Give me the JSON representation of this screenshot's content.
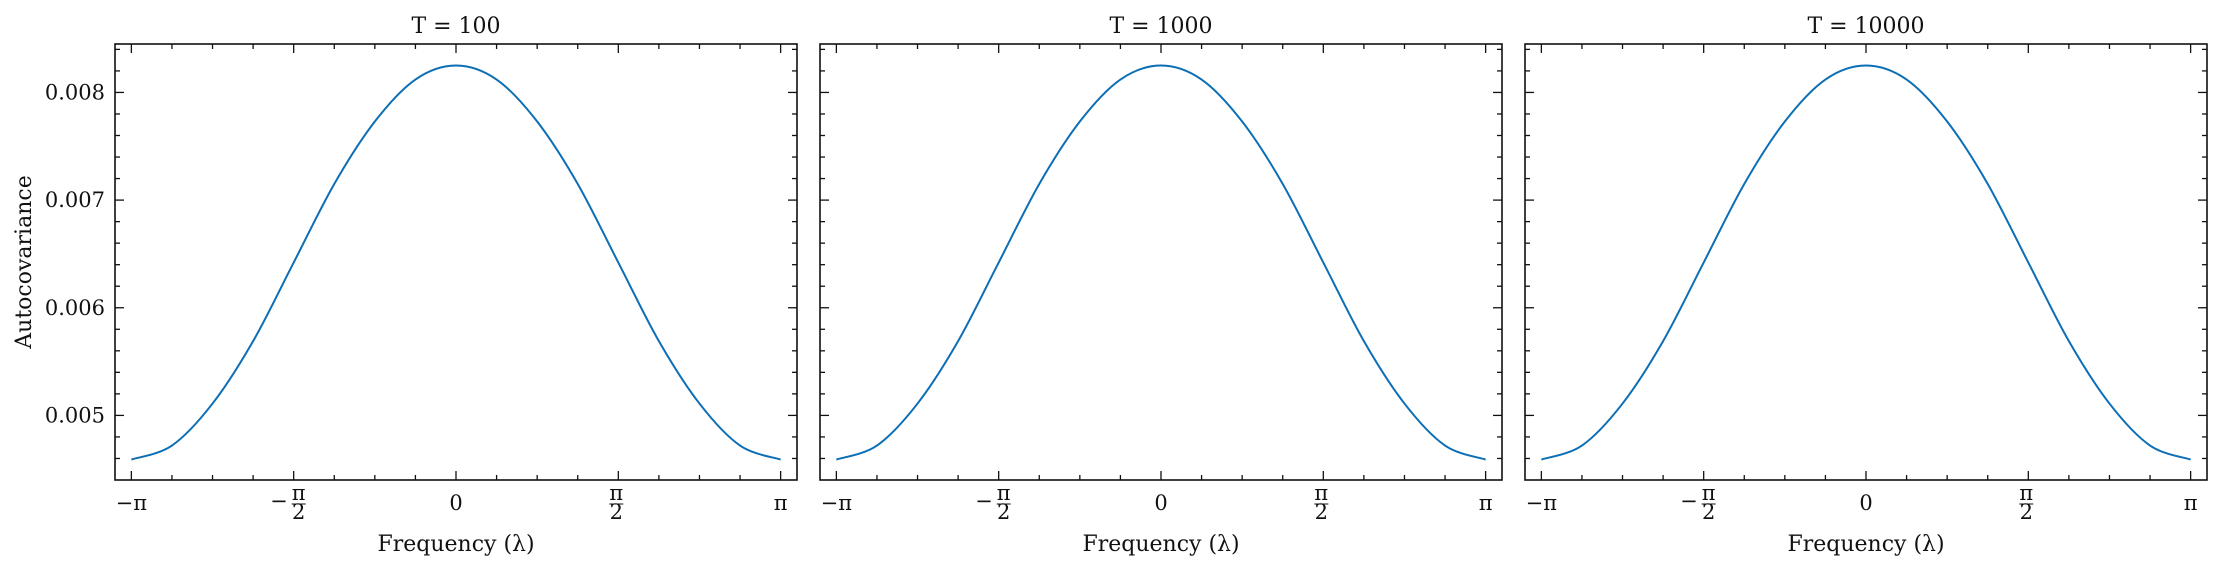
{
  "style": {
    "line_color": "#0c6eb5"
  },
  "chart_data": [
    {
      "type": "line",
      "title": "T = 100",
      "xlabel": "Frequency (λ)",
      "ylabel": "Autocovariance",
      "xlim": [
        -3.3,
        3.3
      ],
      "ylim": [
        0.0044,
        0.00845
      ],
      "xticks": [
        {
          "value": -3.14159,
          "label": "−π",
          "kind": "plain"
        },
        {
          "value": -1.5708,
          "label": "−π/2",
          "kind": "frac",
          "sign": "−",
          "num": "π",
          "den": "2"
        },
        {
          "value": 0,
          "label": "0",
          "kind": "plain"
        },
        {
          "value": 1.5708,
          "label": "π/2",
          "kind": "frac",
          "sign": "",
          "num": "π",
          "den": "2"
        },
        {
          "value": 3.14159,
          "label": "π",
          "kind": "plain"
        }
      ],
      "yticks": [
        {
          "value": 0.005,
          "label": "0.005"
        },
        {
          "value": 0.006,
          "label": "0.006"
        },
        {
          "value": 0.007,
          "label": "0.007"
        },
        {
          "value": 0.008,
          "label": "0.008"
        }
      ],
      "series": [
        {
          "x": [
            -3.1416,
            -2.7489,
            -2.3562,
            -1.9635,
            -1.5708,
            -1.1781,
            -0.7854,
            -0.3927,
            0,
            0.3927,
            0.7854,
            1.1781,
            1.5708,
            1.9635,
            2.3562,
            2.7489,
            3.1416
          ],
          "y": [
            0.00459,
            0.00472,
            0.00511,
            0.00569,
            0.00642,
            0.00715,
            0.00773,
            0.00812,
            0.00825,
            0.00812,
            0.00773,
            0.00715,
            0.00642,
            0.00569,
            0.00511,
            0.00472,
            0.00459
          ]
        }
      ]
    },
    {
      "type": "line",
      "title": "T = 1000",
      "xlabel": "Frequency (λ)",
      "ylabel": "",
      "xlim": [
        -3.3,
        3.3
      ],
      "ylim": [
        0.0044,
        0.00845
      ],
      "xticks": [
        {
          "value": -3.14159,
          "label": "−π",
          "kind": "plain"
        },
        {
          "value": -1.5708,
          "label": "−π/2",
          "kind": "frac",
          "sign": "−",
          "num": "π",
          "den": "2"
        },
        {
          "value": 0,
          "label": "0",
          "kind": "plain"
        },
        {
          "value": 1.5708,
          "label": "π/2",
          "kind": "frac",
          "sign": "",
          "num": "π",
          "den": "2"
        },
        {
          "value": 3.14159,
          "label": "π",
          "kind": "plain"
        }
      ],
      "yticks": [
        {
          "value": 0.005,
          "label": ""
        },
        {
          "value": 0.006,
          "label": ""
        },
        {
          "value": 0.007,
          "label": ""
        },
        {
          "value": 0.008,
          "label": ""
        }
      ],
      "series": [
        {
          "x": [
            -3.1416,
            -2.7489,
            -2.3562,
            -1.9635,
            -1.5708,
            -1.1781,
            -0.7854,
            -0.3927,
            0,
            0.3927,
            0.7854,
            1.1781,
            1.5708,
            1.9635,
            2.3562,
            2.7489,
            3.1416
          ],
          "y": [
            0.00459,
            0.00472,
            0.00511,
            0.00569,
            0.00642,
            0.00715,
            0.00773,
            0.00812,
            0.00825,
            0.00812,
            0.00773,
            0.00715,
            0.00642,
            0.00569,
            0.00511,
            0.00472,
            0.00459
          ]
        }
      ]
    },
    {
      "type": "line",
      "title": "T = 10000",
      "xlabel": "Frequency (λ)",
      "ylabel": "",
      "xlim": [
        -3.3,
        3.3
      ],
      "ylim": [
        0.0044,
        0.00845
      ],
      "xticks": [
        {
          "value": -3.14159,
          "label": "−π",
          "kind": "plain"
        },
        {
          "value": -1.5708,
          "label": "−π/2",
          "kind": "frac",
          "sign": "−",
          "num": "π",
          "den": "2"
        },
        {
          "value": 0,
          "label": "0",
          "kind": "plain"
        },
        {
          "value": 1.5708,
          "label": "π/2",
          "kind": "frac",
          "sign": "",
          "num": "π",
          "den": "2"
        },
        {
          "value": 3.14159,
          "label": "π",
          "kind": "plain"
        }
      ],
      "yticks": [
        {
          "value": 0.005,
          "label": ""
        },
        {
          "value": 0.006,
          "label": ""
        },
        {
          "value": 0.007,
          "label": ""
        },
        {
          "value": 0.008,
          "label": ""
        }
      ],
      "series": [
        {
          "x": [
            -3.1416,
            -2.7489,
            -2.3562,
            -1.9635,
            -1.5708,
            -1.1781,
            -0.7854,
            -0.3927,
            0,
            0.3927,
            0.7854,
            1.1781,
            1.5708,
            1.9635,
            2.3562,
            2.7489,
            3.1416
          ],
          "y": [
            0.00459,
            0.00472,
            0.00511,
            0.00569,
            0.00642,
            0.00715,
            0.00773,
            0.00812,
            0.00825,
            0.00812,
            0.00773,
            0.00715,
            0.00642,
            0.00569,
            0.00511,
            0.00472,
            0.00459
          ]
        }
      ]
    }
  ]
}
